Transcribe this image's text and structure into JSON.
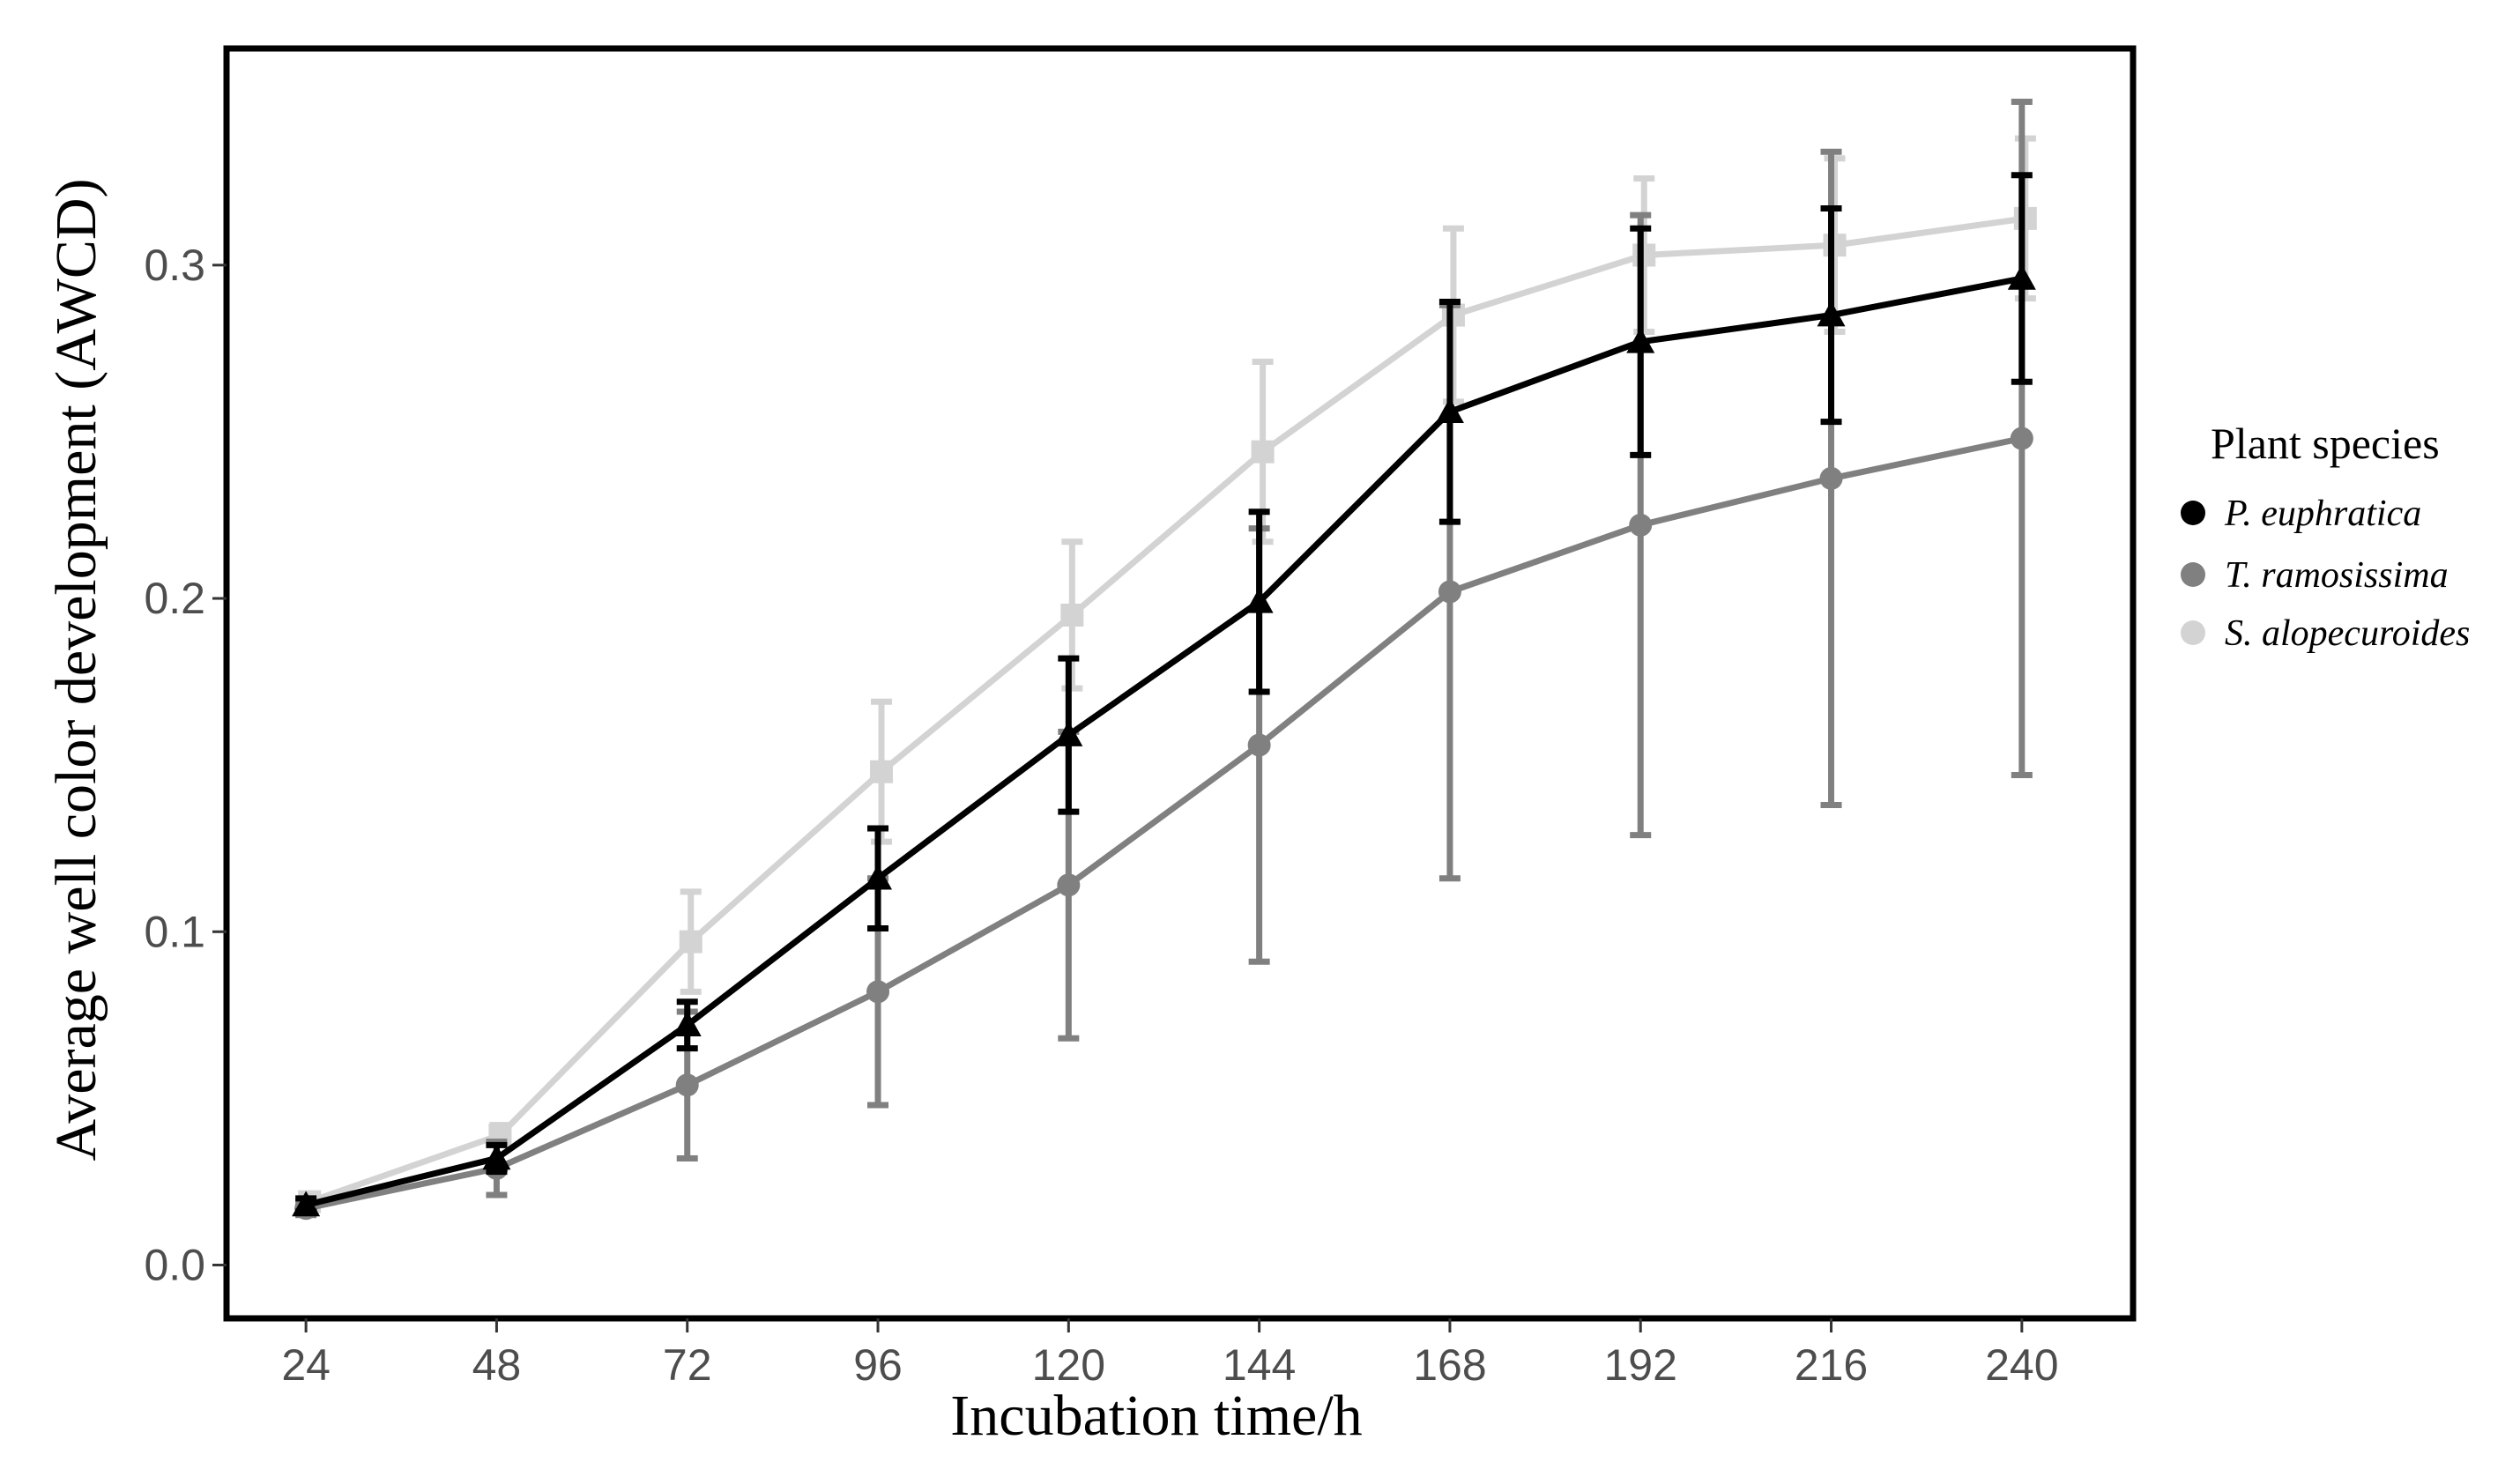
{
  "chart_data": {
    "type": "line",
    "title": "",
    "xlabel": "Incubation time/h",
    "ylabel": "Average well color development (AWCD)",
    "x": [
      24,
      48,
      72,
      96,
      120,
      144,
      168,
      192,
      216,
      240
    ],
    "xticks": [
      "24",
      "48",
      "72",
      "96",
      "120",
      "144",
      "168",
      "192",
      "216",
      "240"
    ],
    "yticks": [
      {
        "value": 0.0,
        "label": "0.0"
      },
      {
        "value": 0.1,
        "label": "0.1"
      },
      {
        "value": 0.2,
        "label": "0.2"
      },
      {
        "value": 0.3,
        "label": "0.3"
      }
    ],
    "xlim": [
      14,
      254
    ],
    "ylim": [
      -0.016,
      0.365
    ],
    "grid": false,
    "legend": {
      "title": "Plant species",
      "position": "right"
    },
    "series": [
      {
        "name": "P. euphratica",
        "color": "#000000",
        "marker": "triangle",
        "values": [
          0.018,
          0.032,
          0.072,
          0.116,
          0.159,
          0.199,
          0.256,
          0.277,
          0.285,
          0.296
        ],
        "error": [
          0.002,
          0.004,
          0.007,
          0.015,
          0.023,
          0.027,
          0.033,
          0.034,
          0.032,
          0.031
        ]
      },
      {
        "name": "T. ramosissima",
        "color": "#808080",
        "marker": "circle",
        "values": [
          0.017,
          0.029,
          0.054,
          0.082,
          0.114,
          0.156,
          0.202,
          0.222,
          0.236,
          0.248
        ],
        "error": [
          0.002,
          0.008,
          0.022,
          0.034,
          0.046,
          0.065,
          0.086,
          0.093,
          0.098,
          0.101
        ]
      },
      {
        "name": "S. alopecuroides",
        "color": "#d3d3d3",
        "marker": "square",
        "values": [
          0.019,
          0.039,
          0.097,
          0.148,
          0.195,
          0.244,
          0.285,
          0.303,
          0.306,
          0.314
        ],
        "error": [
          0.002,
          0.003,
          0.015,
          0.021,
          0.022,
          0.027,
          0.026,
          0.023,
          0.026,
          0.024
        ]
      }
    ]
  }
}
